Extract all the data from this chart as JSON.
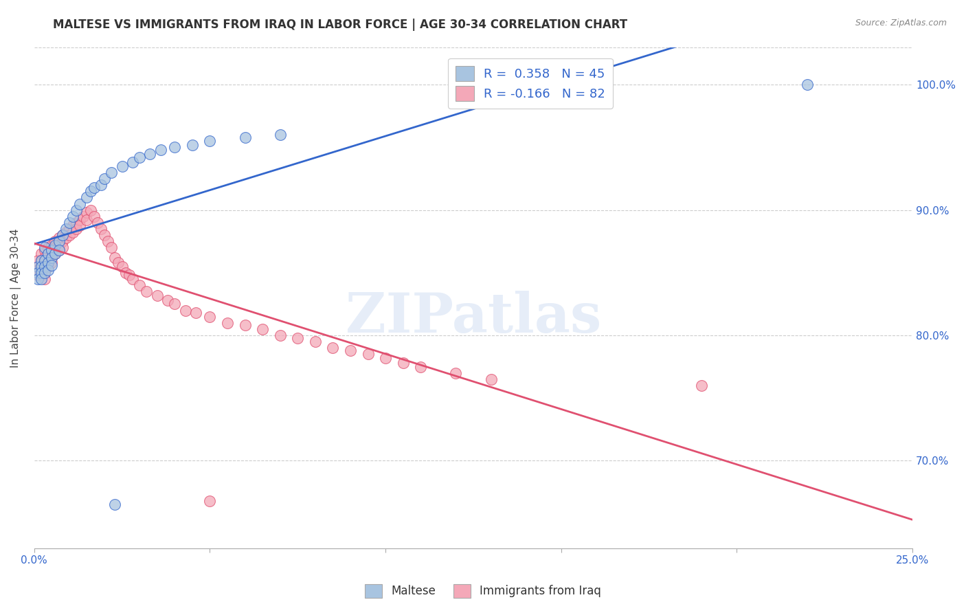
{
  "title": "MALTESE VS IMMIGRANTS FROM IRAQ IN LABOR FORCE | AGE 30-34 CORRELATION CHART",
  "source": "Source: ZipAtlas.com",
  "ylabel": "In Labor Force | Age 30-34",
  "xlim": [
    0.0,
    0.25
  ],
  "ylim": [
    0.63,
    1.03
  ],
  "xticks": [
    0.0,
    0.05,
    0.1,
    0.15,
    0.2,
    0.25
  ],
  "xticklabels": [
    "0.0%",
    "",
    "",
    "",
    "",
    "25.0%"
  ],
  "yticks": [
    0.7,
    0.8,
    0.9,
    1.0
  ],
  "yticklabels": [
    "70.0%",
    "80.0%",
    "90.0%",
    "100.0%"
  ],
  "R_maltese": 0.358,
  "N_maltese": 45,
  "R_iraq": -0.166,
  "N_iraq": 82,
  "maltese_color": "#a8c4e0",
  "iraq_color": "#f4a8b8",
  "maltese_line_color": "#3366cc",
  "iraq_line_color": "#e05070",
  "watermark": "ZIPatlas",
  "maltese_x": [
    0.001,
    0.001,
    0.001,
    0.002,
    0.002,
    0.002,
    0.002,
    0.003,
    0.003,
    0.003,
    0.003,
    0.004,
    0.004,
    0.004,
    0.005,
    0.005,
    0.005,
    0.006,
    0.006,
    0.007,
    0.007,
    0.008,
    0.009,
    0.01,
    0.011,
    0.012,
    0.013,
    0.015,
    0.016,
    0.017,
    0.019,
    0.02,
    0.022,
    0.025,
    0.028,
    0.03,
    0.033,
    0.036,
    0.04,
    0.045,
    0.05,
    0.06,
    0.07,
    0.023,
    0.22
  ],
  "maltese_y": [
    0.855,
    0.85,
    0.845,
    0.86,
    0.855,
    0.85,
    0.845,
    0.87,
    0.86,
    0.855,
    0.85,
    0.865,
    0.858,
    0.852,
    0.868,
    0.862,
    0.856,
    0.872,
    0.865,
    0.875,
    0.868,
    0.88,
    0.885,
    0.89,
    0.895,
    0.9,
    0.905,
    0.91,
    0.915,
    0.918,
    0.92,
    0.925,
    0.93,
    0.935,
    0.938,
    0.942,
    0.945,
    0.948,
    0.95,
    0.952,
    0.955,
    0.958,
    0.96,
    0.665,
    1.0
  ],
  "iraq_x": [
    0.001,
    0.001,
    0.001,
    0.001,
    0.002,
    0.002,
    0.002,
    0.002,
    0.002,
    0.003,
    0.003,
    0.003,
    0.003,
    0.003,
    0.003,
    0.004,
    0.004,
    0.004,
    0.004,
    0.005,
    0.005,
    0.005,
    0.005,
    0.006,
    0.006,
    0.006,
    0.007,
    0.007,
    0.007,
    0.008,
    0.008,
    0.008,
    0.009,
    0.009,
    0.01,
    0.01,
    0.011,
    0.011,
    0.012,
    0.012,
    0.013,
    0.013,
    0.014,
    0.015,
    0.015,
    0.016,
    0.017,
    0.018,
    0.019,
    0.02,
    0.021,
    0.022,
    0.023,
    0.024,
    0.025,
    0.026,
    0.027,
    0.028,
    0.03,
    0.032,
    0.035,
    0.038,
    0.04,
    0.043,
    0.046,
    0.05,
    0.055,
    0.06,
    0.065,
    0.07,
    0.075,
    0.08,
    0.085,
    0.09,
    0.095,
    0.1,
    0.105,
    0.11,
    0.12,
    0.13,
    0.19,
    0.05
  ],
  "iraq_y": [
    0.86,
    0.855,
    0.852,
    0.848,
    0.865,
    0.86,
    0.855,
    0.852,
    0.848,
    0.868,
    0.862,
    0.858,
    0.855,
    0.85,
    0.845,
    0.87,
    0.865,
    0.86,
    0.855,
    0.872,
    0.868,
    0.862,
    0.858,
    0.875,
    0.87,
    0.865,
    0.878,
    0.872,
    0.868,
    0.88,
    0.875,
    0.87,
    0.882,
    0.878,
    0.885,
    0.88,
    0.888,
    0.882,
    0.89,
    0.885,
    0.892,
    0.888,
    0.895,
    0.898,
    0.892,
    0.9,
    0.895,
    0.89,
    0.885,
    0.88,
    0.875,
    0.87,
    0.862,
    0.858,
    0.855,
    0.85,
    0.848,
    0.845,
    0.84,
    0.835,
    0.832,
    0.828,
    0.825,
    0.82,
    0.818,
    0.815,
    0.81,
    0.808,
    0.805,
    0.8,
    0.798,
    0.795,
    0.79,
    0.788,
    0.785,
    0.782,
    0.778,
    0.775,
    0.77,
    0.765,
    0.76,
    0.668
  ]
}
